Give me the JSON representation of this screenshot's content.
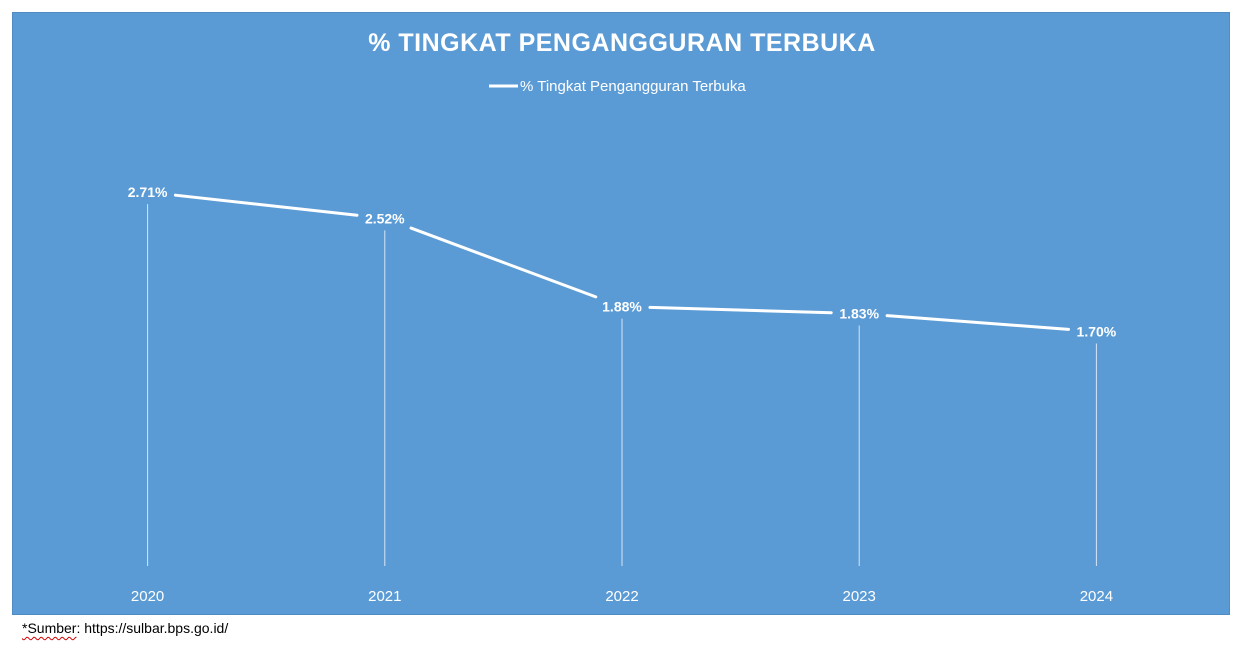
{
  "chart_data": {
    "type": "line",
    "title": "% TINGKAT PENGANGGURAN TERBUKA",
    "categories": [
      "2020",
      "2021",
      "2022",
      "2023",
      "2024"
    ],
    "series": [
      {
        "name": "% Tingkat Pengangguran Terbuka",
        "values": [
          2.71,
          2.52,
          1.88,
          1.83,
          1.7
        ],
        "labels": [
          "2.71%",
          "2.52%",
          "1.88%",
          "1.83%",
          "1.70%"
        ]
      }
    ],
    "xlabel": "",
    "ylabel": "",
    "ylim": [
      0,
      3.2
    ],
    "legend": "top-center",
    "grid": false,
    "drop_lines": true,
    "colors": {
      "background": "#5b9bd5",
      "line": "#ffffff",
      "text": "#ffffff"
    }
  },
  "footer": {
    "source_prefix": "*Sumber",
    "source_rest": ": https://sulbar.bps.go.id/"
  }
}
